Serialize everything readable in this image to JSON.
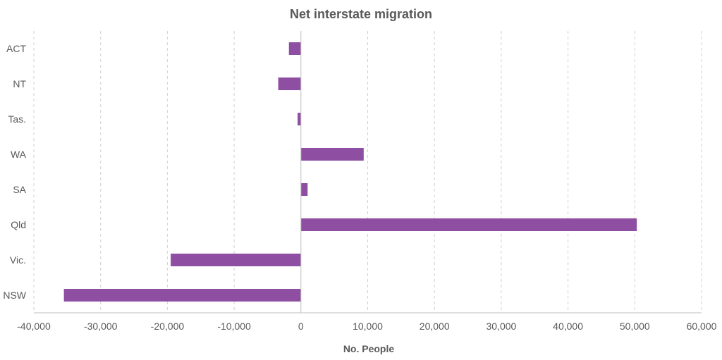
{
  "chart_data": {
    "type": "bar",
    "orientation": "horizontal",
    "title": "Net interstate migration",
    "xlabel": "No. People",
    "ylabel": "",
    "categories": [
      "ACT",
      "NT",
      "Tas.",
      "WA",
      "SA",
      "Qld",
      "Vic.",
      "NSW"
    ],
    "values": [
      -1800,
      -3400,
      -500,
      9400,
      1000,
      50300,
      -19500,
      -35500
    ],
    "xlim": [
      -40000,
      60000
    ],
    "xticks": [
      -40000,
      -30000,
      -20000,
      -10000,
      0,
      10000,
      20000,
      30000,
      40000,
      50000,
      60000
    ],
    "xtick_labels": [
      "-40,000",
      "-30,000",
      "-20,000",
      "-10,000",
      "0",
      "10,000",
      "20,000",
      "30,000",
      "40,000",
      "50,000",
      "60,000"
    ],
    "grid": "vertical dashed",
    "legend": "none",
    "colors": {
      "bar": "#8e4fa2",
      "grid": "#d0d0d0",
      "axis": "#bfbfbf",
      "text": "#595959"
    }
  }
}
